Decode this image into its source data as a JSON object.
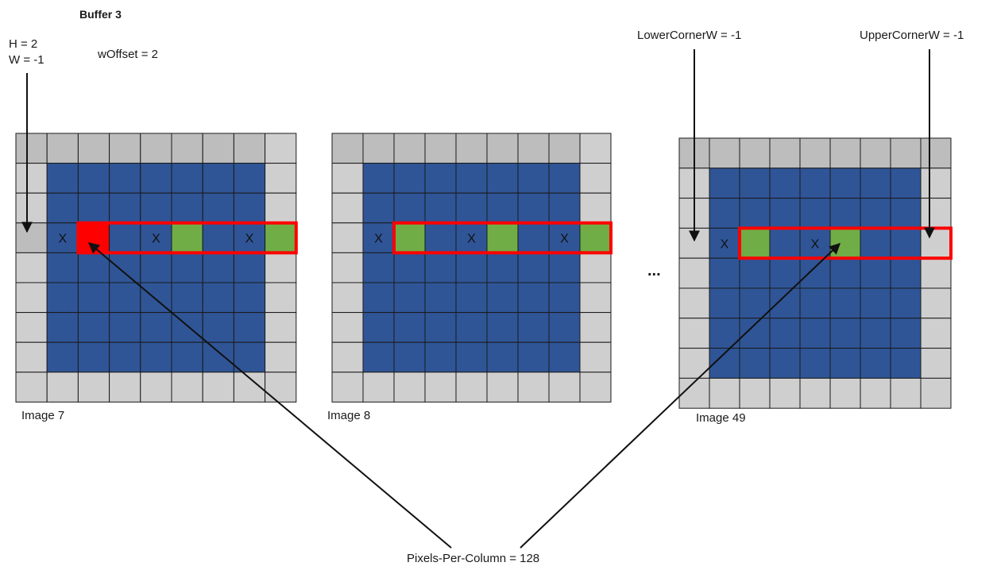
{
  "title": "Buffer 3",
  "params": {
    "h": "H  = 2",
    "w": "W = -1",
    "w_offset": "wOffset = 2",
    "lower_corner_w": "LowerCornerW  = -1",
    "upper_corner_w": "UpperCornerW  = -1",
    "pixels_per_column": "Pixels-Per-Column = 128"
  },
  "ellipsis": "...",
  "cell_mark": "X",
  "colors": {
    "padding": "#d0cfd0",
    "padding_dark": "#bdbdbd",
    "image": "#2f5597",
    "selected": "#70ad47",
    "current": "#ff0000",
    "window_outline": "#ff0000",
    "grid_line": "#1a1a1a"
  },
  "images": [
    {
      "label": "Image 7",
      "grid": 8,
      "window_row": 3,
      "window_cols": [
        2,
        8
      ],
      "x_cols": [
        1,
        4,
        7
      ],
      "green_cols": [
        5,
        8
      ],
      "red_cols": [
        2
      ],
      "dark_padding": [
        [
          0,
          0
        ],
        [
          0,
          1
        ],
        [
          0,
          2
        ],
        [
          0,
          3
        ],
        [
          0,
          4
        ],
        [
          0,
          5
        ],
        [
          0,
          6
        ],
        [
          0,
          7
        ],
        [
          3,
          0
        ]
      ]
    },
    {
      "label": "Image 8",
      "grid": 8,
      "window_row": 3,
      "window_cols": [
        2,
        8
      ],
      "x_cols": [
        1,
        4,
        7
      ],
      "green_cols": [
        2,
        5,
        8
      ],
      "red_cols": [],
      "dark_padding": [
        [
          0,
          0
        ],
        [
          0,
          1
        ],
        [
          0,
          2
        ],
        [
          0,
          3
        ],
        [
          0,
          4
        ],
        [
          0,
          5
        ],
        [
          0,
          6
        ],
        [
          0,
          7
        ]
      ]
    },
    {
      "label": "Image 49",
      "grid": 8,
      "window_row": 3,
      "window_cols": [
        2,
        8
      ],
      "x_cols": [
        1,
        4
      ],
      "green_cols": [
        2,
        5
      ],
      "red_cols": [],
      "dark_padding": [
        [
          0,
          0
        ],
        [
          0,
          1
        ],
        [
          0,
          2
        ],
        [
          0,
          3
        ],
        [
          0,
          4
        ],
        [
          0,
          5
        ],
        [
          0,
          6
        ],
        [
          0,
          7
        ],
        [
          0,
          8
        ]
      ]
    }
  ]
}
